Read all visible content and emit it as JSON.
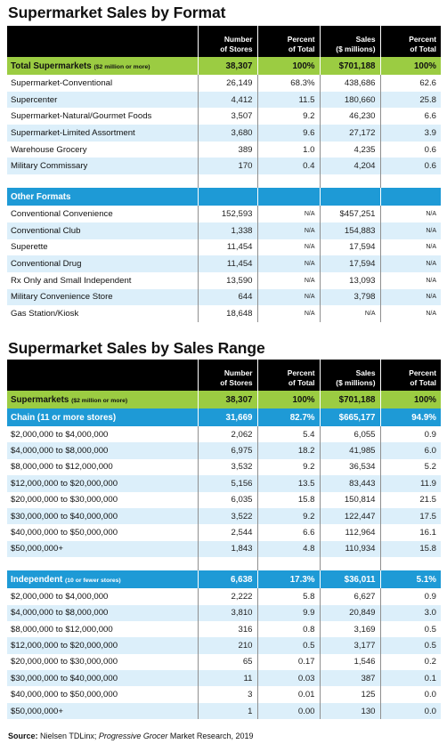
{
  "table1": {
    "title": "Supermarket Sales by Format",
    "headers": {
      "stores": [
        "Number",
        "of Stores"
      ],
      "pct_stores": [
        "Percent",
        "of Total"
      ],
      "sales": [
        "Sales",
        "($ millions)"
      ],
      "pct_sales": [
        "Percent",
        "of Total"
      ]
    },
    "total": {
      "label": "Total Supermarkets",
      "note": "($2 million or more)",
      "stores": "38,307",
      "pct_stores": "100%",
      "sales": "$701,188",
      "pct_sales": "100%"
    },
    "rows": [
      {
        "label": "Supermarket-Conventional",
        "stores": "26,149",
        "pct_stores": "68.3%",
        "sales": "438,686",
        "pct_sales": "62.6"
      },
      {
        "label": "Supercenter",
        "stores": "4,412",
        "pct_stores": "11.5",
        "sales": "180,660",
        "pct_sales": "25.8"
      },
      {
        "label": "Supermarket-Natural/Gourmet Foods",
        "stores": "3,507",
        "pct_stores": "9.2",
        "sales": "46,230",
        "pct_sales": "6.6"
      },
      {
        "label": "Supermarket-Limited Assortment",
        "stores": "3,680",
        "pct_stores": "9.6",
        "sales": "27,172",
        "pct_sales": "3.9"
      },
      {
        "label": "Warehouse Grocery",
        "stores": "389",
        "pct_stores": "1.0",
        "sales": "4,235",
        "pct_sales": "0.6"
      },
      {
        "label": "Military Commissary",
        "stores": "170",
        "pct_stores": "0.4",
        "sales": "4,204",
        "pct_sales": "0.6"
      }
    ],
    "other_label": "Other Formats",
    "other_rows": [
      {
        "label": "Conventional Convenience",
        "stores": "152,593",
        "pct_stores": "N/A",
        "sales": "$457,251",
        "pct_sales": "N/A"
      },
      {
        "label": "Conventional Club",
        "stores": "1,338",
        "pct_stores": "N/A",
        "sales": "154,883",
        "pct_sales": "N/A"
      },
      {
        "label": "Superette",
        "stores": "11,454",
        "pct_stores": "N/A",
        "sales": "17,594",
        "pct_sales": "N/A"
      },
      {
        "label": "Conventional Drug",
        "stores": "11,454",
        "pct_stores": "N/A",
        "sales": "17,594",
        "pct_sales": "N/A"
      },
      {
        "label": "Rx Only and Small Independent",
        "stores": "13,590",
        "pct_stores": "N/A",
        "sales": "13,093",
        "pct_sales": "N/A"
      },
      {
        "label": "Military Convenience Store",
        "stores": "644",
        "pct_stores": "N/A",
        "sales": "3,798",
        "pct_sales": "N/A"
      },
      {
        "label": "Gas Station/Kiosk",
        "stores": "18,648",
        "pct_stores": "N/A",
        "sales": "N/A",
        "pct_sales": "N/A"
      }
    ]
  },
  "table2": {
    "title": "Supermarket Sales by Sales Range",
    "headers": {
      "stores": [
        "Number",
        "of Stores"
      ],
      "pct_stores": [
        "Percent",
        "of Total"
      ],
      "sales": [
        "Sales",
        "($ millions)"
      ],
      "pct_sales": [
        "Percent",
        "of Total"
      ]
    },
    "total": {
      "label": "Supermarkets",
      "note": "($2 million or more)",
      "stores": "38,307",
      "pct_stores": "100%",
      "sales": "$701,188",
      "pct_sales": "100%"
    },
    "chain": {
      "label": "Chain (11 or more stores)",
      "stores": "31,669",
      "pct_stores": "82.7%",
      "sales": "$665,177",
      "pct_sales": "94.9%"
    },
    "chain_rows": [
      {
        "label": "$2,000,000 to $4,000,000",
        "stores": "2,062",
        "pct_stores": "5.4",
        "sales": "6,055",
        "pct_sales": "0.9"
      },
      {
        "label": "$4,000,000 to $8,000,000",
        "stores": "6,975",
        "pct_stores": "18.2",
        "sales": "41,985",
        "pct_sales": "6.0"
      },
      {
        "label": "$8,000,000 to $12,000,000",
        "stores": "3,532",
        "pct_stores": "9.2",
        "sales": "36,534",
        "pct_sales": "5.2"
      },
      {
        "label": "$12,000,000 to $20,000,000",
        "stores": "5,156",
        "pct_stores": "13.5",
        "sales": "83,443",
        "pct_sales": "11.9"
      },
      {
        "label": "$20,000,000 to $30,000,000",
        "stores": "6,035",
        "pct_stores": "15.8",
        "sales": "150,814",
        "pct_sales": "21.5"
      },
      {
        "label": "$30,000,000 to $40,000,000",
        "stores": "3,522",
        "pct_stores": "9.2",
        "sales": "122,447",
        "pct_sales": "17.5"
      },
      {
        "label": "$40,000,000 to $50,000,000",
        "stores": "2,544",
        "pct_stores": "6.6",
        "sales": "112,964",
        "pct_sales": "16.1"
      },
      {
        "label": "$50,000,000+",
        "stores": "1,843",
        "pct_stores": "4.8",
        "sales": "110,934",
        "pct_sales": "15.8"
      }
    ],
    "independent": {
      "label": "Independent",
      "note": "(10 or fewer stores)",
      "stores": "6,638",
      "pct_stores": "17.3%",
      "sales": "$36,011",
      "pct_sales": "5.1%"
    },
    "independent_rows": [
      {
        "label": "$2,000,000 to $4,000,000",
        "stores": "2,222",
        "pct_stores": "5.8",
        "sales": "6,627",
        "pct_sales": "0.9"
      },
      {
        "label": "$4,000,000 to $8,000,000",
        "stores": "3,810",
        "pct_stores": "9.9",
        "sales": "20,849",
        "pct_sales": "3.0"
      },
      {
        "label": "$8,000,000 to $12,000,000",
        "stores": "316",
        "pct_stores": "0.8",
        "sales": "3,169",
        "pct_sales": "0.5"
      },
      {
        "label": "$12,000,000 to $20,000,000",
        "stores": "210",
        "pct_stores": "0.5",
        "sales": "3,177",
        "pct_sales": "0.5"
      },
      {
        "label": "$20,000,000 to $30,000,000",
        "stores": "65",
        "pct_stores": "0.17",
        "sales": "1,546",
        "pct_sales": "0.2"
      },
      {
        "label": "$30,000,000 to $40,000,000",
        "stores": "11",
        "pct_stores": "0.03",
        "sales": "387",
        "pct_sales": "0.1"
      },
      {
        "label": "$40,000,000 to $50,000,000",
        "stores": "3",
        "pct_stores": "0.01",
        "sales": "125",
        "pct_sales": "0.0"
      },
      {
        "label": "$50,000,000+",
        "stores": "1",
        "pct_stores": "0.00",
        "sales": "130",
        "pct_sales": "0.0"
      }
    ]
  },
  "source": {
    "label": "Source:",
    "text_a": " Nielsen TDLinx; ",
    "text_italic": "Progressive Grocer",
    "text_b": " Market Research, 2019"
  },
  "colors": {
    "header": "#000000",
    "green": "#9bcc42",
    "blue": "#1e9ad6",
    "stripe": "#dceffa"
  }
}
